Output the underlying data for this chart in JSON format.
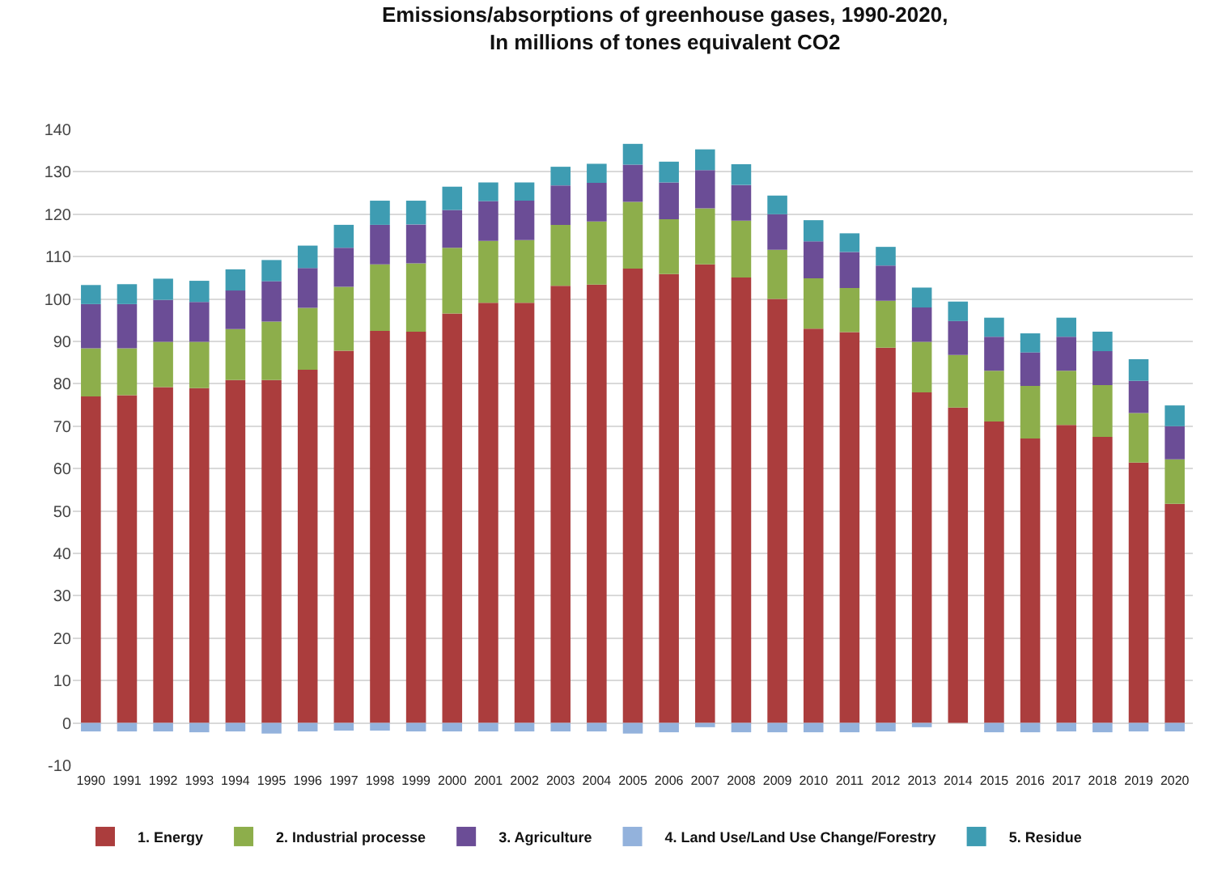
{
  "chart_data": {
    "type": "bar",
    "title": "Emissions/absorptions of greenhouse gases, 1990-2020,\nIn millions of tones equivalent CO2",
    "stacked": true,
    "categories": [
      "1990",
      "1991",
      "1992",
      "1993",
      "1994",
      "1995",
      "1996",
      "1997",
      "1998",
      "1999",
      "2000",
      "2001",
      "2002",
      "2003",
      "2004",
      "2005",
      "2006",
      "2007",
      "2008",
      "2009",
      "2010",
      "2011",
      "2012",
      "2013",
      "2014",
      "2015",
      "2016",
      "2017",
      "2018",
      "2019",
      "2020"
    ],
    "series": [
      {
        "name": "1. Energy",
        "color": "#ab3d3d",
        "values": [
          77,
          77.3,
          79.2,
          79,
          80.9,
          80.9,
          83.3,
          87.8,
          92.5,
          92.3,
          96.6,
          99.1,
          99.1,
          103.1,
          103.4,
          107.2,
          105.9,
          108.2,
          105.1,
          100,
          93,
          92.2,
          88.5,
          78,
          74.4,
          71.1,
          67.1,
          70.3,
          67.5,
          61.4,
          51.7
        ]
      },
      {
        "name": "2. Industrial processe",
        "color": "#8dae4b",
        "values": [
          11.4,
          11.1,
          10.7,
          10.9,
          12,
          13.8,
          14.6,
          15.1,
          15.7,
          16.1,
          15.5,
          14.6,
          14.8,
          14.4,
          14.9,
          15.7,
          12.9,
          13.2,
          13.4,
          11.6,
          11.9,
          10.4,
          11.1,
          11.9,
          12.4,
          12,
          12.4,
          12.8,
          12.2,
          11.7,
          10.5
        ]
      },
      {
        "name": "3. Agriculture",
        "color": "#6b4d96",
        "values": [
          10.4,
          10.4,
          9.9,
          9.4,
          9.1,
          9.5,
          9.4,
          9.2,
          9.3,
          9.2,
          8.9,
          9.4,
          9.3,
          9.3,
          9.1,
          8.8,
          8.7,
          9,
          8.4,
          8.4,
          8.7,
          8.5,
          8.3,
          8.1,
          8,
          8,
          7.9,
          8,
          8,
          7.6,
          7.8
        ]
      },
      {
        "name": "4. Land Use/Land Use Change/Forestry",
        "color": "#93b2dc",
        "values": [
          -2,
          -2,
          -2,
          -2.2,
          -2,
          -2.5,
          -2,
          -1.8,
          -1.8,
          -2,
          -2,
          -2,
          -2,
          -2,
          -2,
          -2.5,
          -2.2,
          -1,
          -2.2,
          -2.2,
          -2.2,
          -2.2,
          -2,
          -1,
          0,
          -2.2,
          -2.2,
          -2,
          -2.2,
          -2,
          -2
        ]
      },
      {
        "name": "5. Residue",
        "color": "#3e9cb2",
        "values": [
          4.5,
          4.7,
          5,
          5,
          5,
          5,
          5.3,
          5.4,
          5.7,
          5.6,
          5.5,
          4.4,
          4.3,
          4.4,
          4.5,
          4.9,
          4.9,
          4.9,
          4.9,
          4.4,
          5,
          4.4,
          4.4,
          4.7,
          4.6,
          4.5,
          4.5,
          4.5,
          4.6,
          5.1,
          4.9
        ]
      }
    ],
    "ylim": [
      -10,
      140
    ],
    "yticks": [
      -10,
      0,
      10,
      20,
      30,
      40,
      50,
      60,
      70,
      80,
      90,
      100,
      110,
      120,
      130,
      140
    ],
    "grid": "y",
    "legend": "bottom"
  }
}
